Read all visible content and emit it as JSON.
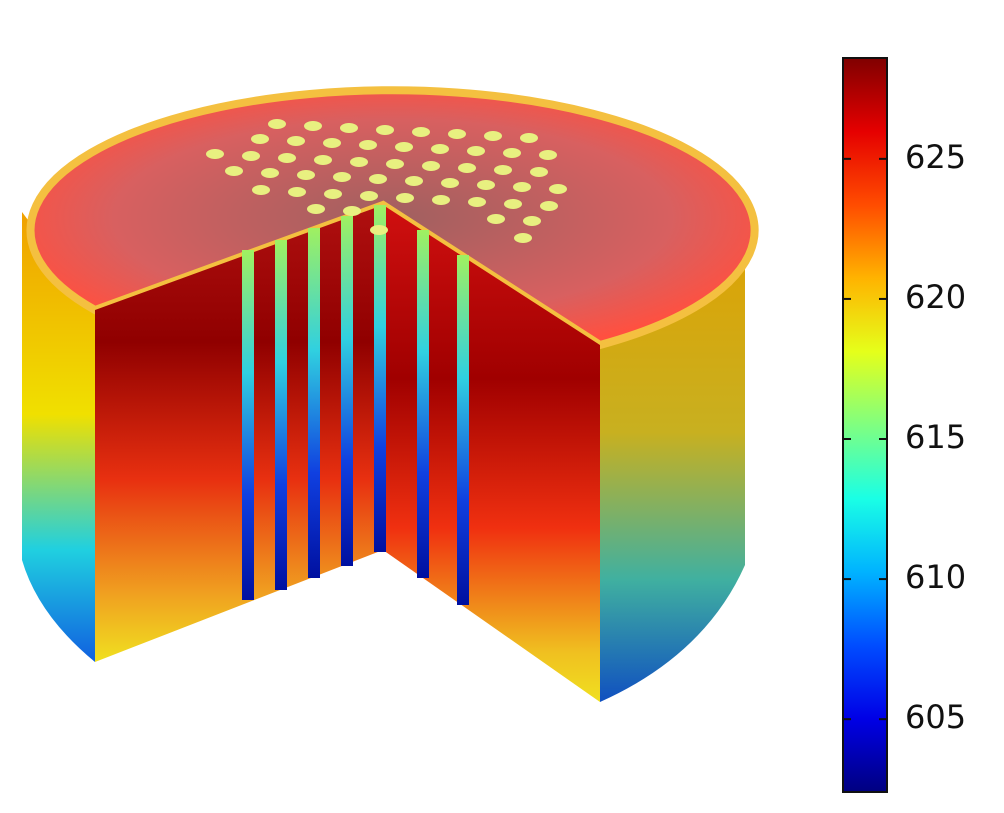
{
  "chart_data": {
    "type": "colorbar",
    "colormap": "jet",
    "clim": [
      602.4,
      628.6
    ],
    "ticks": [
      605,
      610,
      615,
      620,
      625
    ]
  }
}
